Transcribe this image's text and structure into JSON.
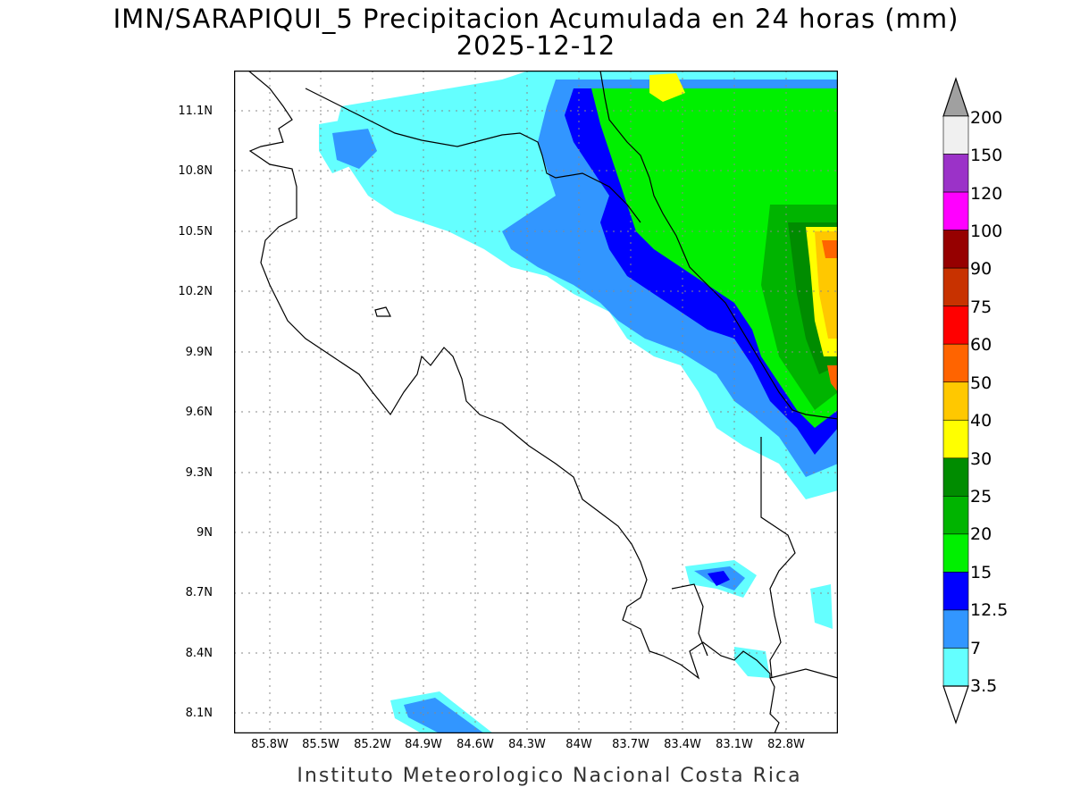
{
  "title": {
    "line1": "IMN/SARAPIQUI_5 Precipitacion Acumulada en 24 horas (mm)",
    "line2": "2025-12-12"
  },
  "footer": "Instituto Meteorologico Nacional Costa Rica",
  "axes": {
    "lat_labels": [
      "11.1N",
      "10.8N",
      "10.5N",
      "10.2N",
      "9.9N",
      "9.6N",
      "9.3N",
      "9N",
      "8.7N",
      "8.4N",
      "8.1N"
    ],
    "lon_labels": [
      "85.8W",
      "85.5W",
      "85.2W",
      "84.9W",
      "84.6W",
      "84.3W",
      "84W",
      "83.7W",
      "83.4W",
      "83.1W",
      "82.8W"
    ]
  },
  "legend": {
    "labels": [
      "200",
      "150",
      "120",
      "100",
      "90",
      "75",
      "60",
      "50",
      "40",
      "30",
      "25",
      "20",
      "15",
      "12.5",
      "7",
      "3.5"
    ],
    "colors": [
      "#f0f0f0",
      "#9b32c8",
      "#ff00ff",
      "#960000",
      "#c83200",
      "#ff0000",
      "#ff6400",
      "#ffc800",
      "#ffff00",
      "#008c00",
      "#00b400",
      "#00f000",
      "#0000ff",
      "#3296ff",
      "#64ffff"
    ],
    "over_color": "#a0a0a0"
  }
}
